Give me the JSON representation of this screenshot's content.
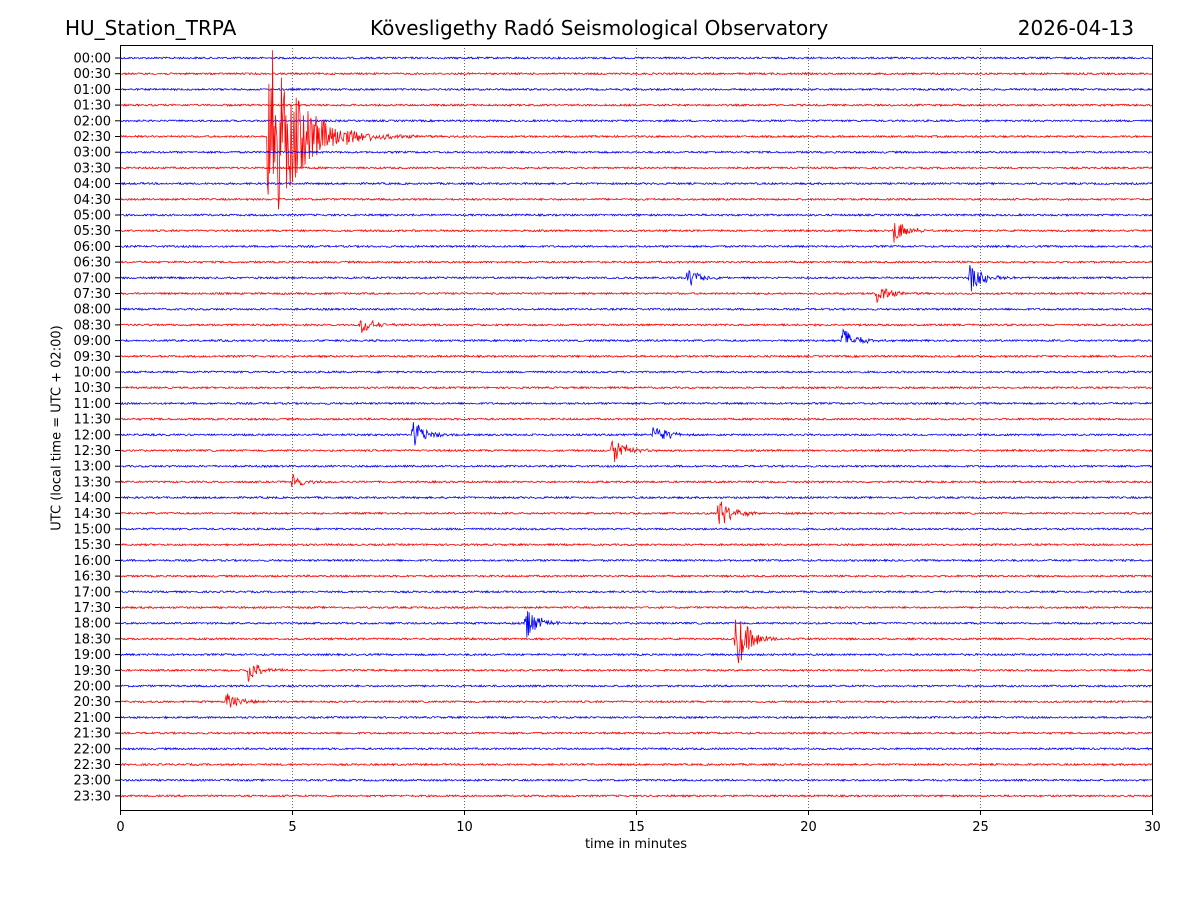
{
  "header": {
    "station": "HU_Station_TRPA",
    "observatory": "Kövesligethy Radó Seismological Observatory",
    "date": "2026-04-13"
  },
  "chart_data": {
    "type": "line",
    "title": "Kövesligethy Radó Seismological Observatory",
    "xlabel": "time in minutes",
    "ylabel": "UTC (local time = UTC + 02:00)",
    "xlim": [
      0,
      30
    ],
    "x_ticks": [
      0,
      5,
      10,
      15,
      20,
      25,
      30
    ],
    "grid": "vertical dotted",
    "row_labels": [
      "00:00",
      "00:30",
      "01:00",
      "01:30",
      "02:00",
      "02:30",
      "03:00",
      "03:30",
      "04:00",
      "04:30",
      "05:00",
      "05:30",
      "06:00",
      "06:30",
      "07:00",
      "07:30",
      "08:00",
      "08:30",
      "09:00",
      "09:30",
      "10:00",
      "10:30",
      "11:00",
      "11:30",
      "12:00",
      "12:30",
      "13:00",
      "13:30",
      "14:00",
      "14:30",
      "15:00",
      "15:30",
      "16:00",
      "16:30",
      "17:00",
      "17:30",
      "18:00",
      "18:30",
      "19:00",
      "19:30",
      "20:00",
      "20:30",
      "21:00",
      "21:30",
      "22:00",
      "22:30",
      "23:00",
      "23:30"
    ],
    "trace_colors": [
      "#0000ff",
      "#ff0000"
    ],
    "events": [
      {
        "row": "02:30",
        "minute": 4.3,
        "amplitude": 3.0
      },
      {
        "row": "05:30",
        "minute": 22.5,
        "amplitude": 0.4
      },
      {
        "row": "07:00",
        "minute": 16.5,
        "amplitude": 0.3
      },
      {
        "row": "07:00",
        "minute": 24.7,
        "amplitude": 0.5
      },
      {
        "row": "07:30",
        "minute": 22.0,
        "amplitude": 0.3
      },
      {
        "row": "08:30",
        "minute": 7.0,
        "amplitude": 0.3
      },
      {
        "row": "09:00",
        "minute": 21.0,
        "amplitude": 0.4
      },
      {
        "row": "12:00",
        "minute": 8.5,
        "amplitude": 0.45
      },
      {
        "row": "12:00",
        "minute": 15.5,
        "amplitude": 0.35
      },
      {
        "row": "12:30",
        "minute": 14.3,
        "amplitude": 0.5
      },
      {
        "row": "13:30",
        "minute": 5.0,
        "amplitude": 0.25
      },
      {
        "row": "14:30",
        "minute": 17.4,
        "amplitude": 0.5
      },
      {
        "row": "18:00",
        "minute": 11.8,
        "amplitude": 0.5
      },
      {
        "row": "18:30",
        "minute": 17.9,
        "amplitude": 1.0
      },
      {
        "row": "19:30",
        "minute": 3.7,
        "amplitude": 0.4
      },
      {
        "row": "20:30",
        "minute": 3.1,
        "amplitude": 0.3
      }
    ]
  }
}
